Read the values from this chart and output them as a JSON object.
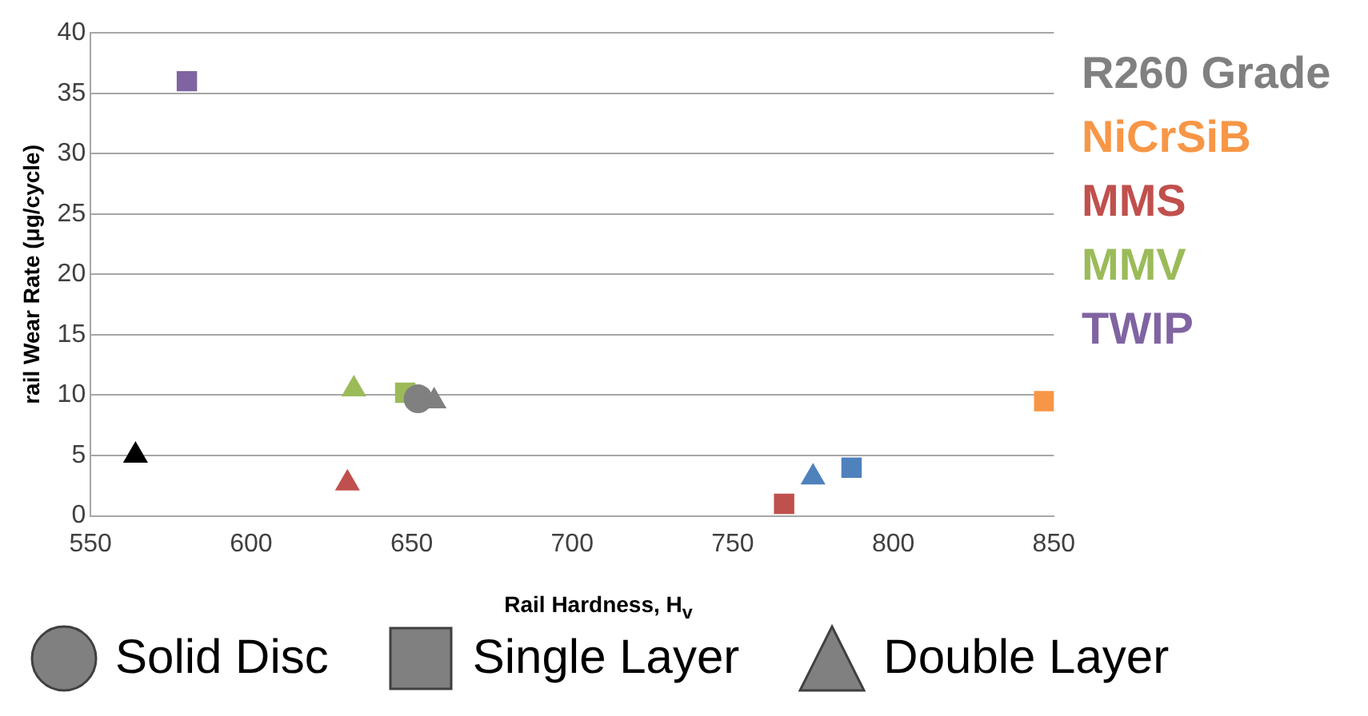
{
  "chart_data": {
    "type": "scatter",
    "xlabel": "Rail Hardness, H$_{v}$",
    "ylabel": "rail Wear Rate (μg/cycle)",
    "xlim": [
      550,
      850
    ],
    "xticks": [
      550,
      600,
      650,
      700,
      750,
      800,
      850
    ],
    "ylim": [
      0,
      40
    ],
    "yticks": [
      0,
      5,
      10,
      15,
      20,
      25,
      30,
      35,
      40
    ],
    "grid": "y",
    "legend": "right",
    "series": [
      {
        "name": "R260 Grade",
        "color": "#808080",
        "marker": "circle",
        "x": [
          652
        ],
        "values": [
          9.7
        ]
      },
      {
        "name": "NiCrSiB",
        "color": "#f79646",
        "marker": "square",
        "x": [
          847
        ],
        "values": [
          9.5
        ]
      },
      {
        "name": "MMS",
        "color": "#c0504d",
        "marker": "square",
        "x": [
          766
        ],
        "values": [
          1
        ]
      },
      {
        "color": "#4f81bd",
        "marker": "square",
        "x": [
          787
        ],
        "values": [
          4
        ]
      },
      {
        "color": "#000000",
        "marker": "triangle",
        "x": [
          564
        ],
        "values": [
          5
        ]
      },
      {
        "name": "MMV",
        "color": "#9bbb59",
        "marker": "square",
        "x": [
          648
        ],
        "values": [
          10.2
        ]
      },
      {
        "name": "TWIP",
        "color": "#8064a2",
        "marker": "square",
        "x": [
          580
        ],
        "values": [
          36
        ]
      },
      {
        "color": "#808080",
        "marker": "triangle",
        "x": [
          657
        ],
        "values": [
          9.5
        ]
      },
      {
        "color": "#c0504d",
        "marker": "triangle",
        "x": [
          630
        ],
        "values": [
          2.7
        ]
      },
      {
        "color": "#4f81bd",
        "marker": "triangle",
        "x": [
          775
        ],
        "values": [
          3.2
        ]
      },
      {
        "color": "#9bbb59",
        "marker": "triangle",
        "x": [
          632
        ],
        "values": [
          10.5
        ]
      }
    ],
    "annotations": [
      "Solid Disc",
      "Single Layer",
      "Double Layer"
    ]
  }
}
